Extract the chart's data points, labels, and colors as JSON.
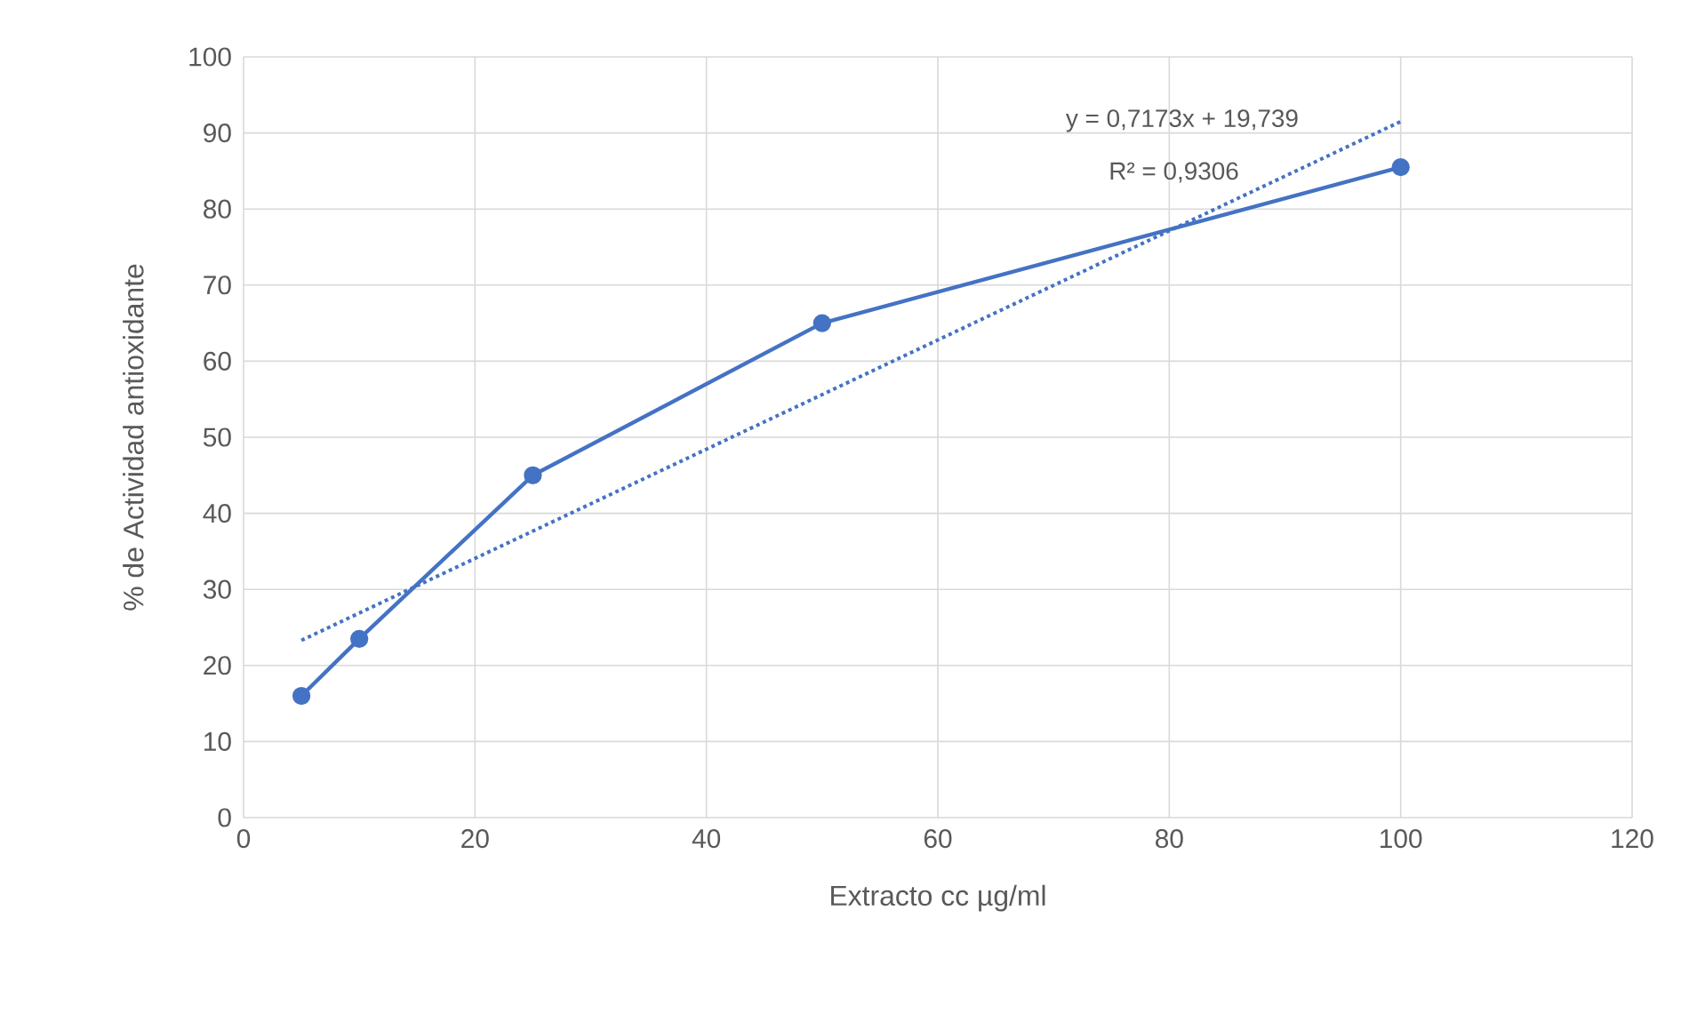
{
  "chart_data": {
    "type": "line",
    "xlabel": "Extracto cc µg/ml",
    "ylabel": "% de Actividad antioxidante",
    "xlim": [
      0,
      120
    ],
    "xticks": [
      0,
      20,
      40,
      60,
      80,
      100,
      120
    ],
    "ylim": [
      0,
      100
    ],
    "yticks": [
      0,
      10,
      20,
      30,
      40,
      50,
      60,
      70,
      80,
      90,
      100
    ],
    "grid": true,
    "annotations": [
      "y = 0,7173x + 19,739",
      "R² = 0,9306"
    ],
    "series": [
      {
        "color": "#4472c4",
        "x": [
          5,
          10,
          25,
          50,
          100
        ],
        "values": [
          16,
          23.5,
          45,
          65,
          85.5
        ],
        "marker": "circle",
        "line_style": "solid"
      },
      {
        "type": "line",
        "color": "#4472c4",
        "x": [
          5,
          100
        ],
        "values": [
          23.3,
          91.5
        ],
        "marker": "none",
        "line_style": "dotted"
      }
    ]
  }
}
